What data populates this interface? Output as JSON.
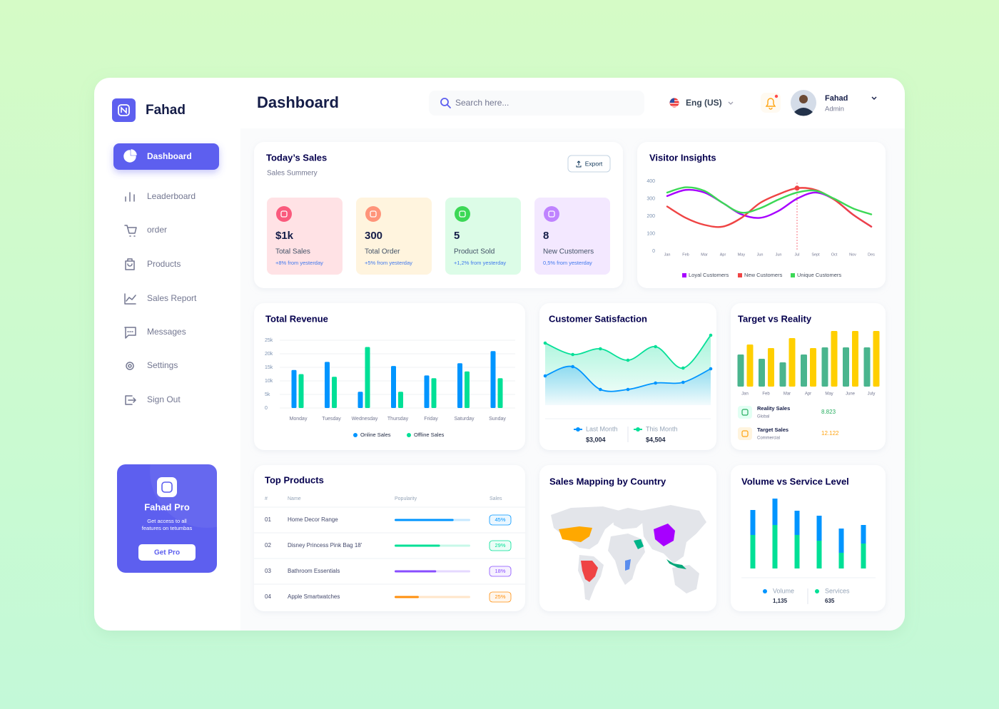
{
  "sidebar": {
    "brand": "Fahad",
    "menu": [
      "Dashboard",
      "Leaderboard",
      "order",
      "Products",
      "Sales Report",
      "Messages",
      "Settings",
      "Sign Out"
    ],
    "promo": {
      "title": "Fahad Pro",
      "text": [
        "Get access to all",
        "features on tetumbas"
      ],
      "button": "Get Pro"
    }
  },
  "header": {
    "title": "Dashboard",
    "search": "Search here...",
    "language": "Eng (US)",
    "user": {
      "name": "Fahad",
      "role": "Admin"
    }
  },
  "todays_sales": {
    "title": "Today’s Sales",
    "subtitle": "Sales Summery",
    "export": "Export",
    "cards": [
      {
        "value": "$1k",
        "label": "Total Sales",
        "change": "+8% from yesterday",
        "color": "#ffe2e5",
        "icon_color": "#fa5a7d"
      },
      {
        "value": "300",
        "label": "Total Order",
        "change": "+5% from yesterday",
        "color": "#fff4de",
        "icon_color": "#ff947a"
      },
      {
        "value": "5",
        "label": "Product Sold",
        "change": "+1,2% from yesterday",
        "color": "#dcfce7",
        "icon_color": "#3cd856"
      },
      {
        "value": "8",
        "label": "New Customers",
        "change": "0,5% from yesterday",
        "color": "#f3e8ff",
        "icon_color": "#bf83ff"
      }
    ]
  },
  "top_products": {
    "title": "Top Products",
    "columns": [
      "#",
      "Name",
      "Popularity",
      "Sales"
    ],
    "rows": [
      {
        "id": "01",
        "name": "Home Decor Range",
        "popularity": 78,
        "sales": "45%",
        "color": "#0095ff"
      },
      {
        "id": "02",
        "name": "Disney Princess Pink Bag 18'",
        "popularity": 60,
        "sales": "29%",
        "color": "#00e096"
      },
      {
        "id": "03",
        "name": "Bathroom Essentials",
        "popularity": 55,
        "sales": "18%",
        "color": "#884dff"
      },
      {
        "id": "04",
        "name": "Apple Smartwatches",
        "popularity": 32,
        "sales": "25%",
        "color": "#ff8f0d"
      }
    ]
  },
  "sales_map": {
    "title": "Sales Mapping by Country"
  },
  "chart_data": [
    {
      "type": "line",
      "title": "Visitor Insights",
      "categories": [
        "Jan",
        "Feb",
        "Mar",
        "Apr",
        "May",
        "Jun",
        "Jun",
        "Jul",
        "Sept",
        "Oct",
        "Nov",
        "Des"
      ],
      "ylim": [
        0,
        400
      ],
      "yticks": [
        0,
        100,
        200,
        300,
        400
      ],
      "series": [
        {
          "name": "Loyal Customers",
          "color": "#a700ff",
          "values": [
            315,
            350,
            335,
            275,
            210,
            190,
            230,
            300,
            335,
            295,
            210,
            140
          ]
        },
        {
          "name": "New Customers",
          "color": "#ef4444",
          "values": [
            255,
            190,
            150,
            140,
            190,
            275,
            325,
            360,
            350,
            295,
            210,
            140
          ]
        },
        {
          "name": "Unique Customers",
          "color": "#3cd856",
          "values": [
            335,
            365,
            345,
            275,
            220,
            245,
            295,
            335,
            345,
            300,
            245,
            210
          ]
        }
      ]
    },
    {
      "type": "bar",
      "title": "Total Revenue",
      "categories": [
        "Monday",
        "Tuesday",
        "Wednesday",
        "Thursday",
        "Friday",
        "Saturday",
        "Sunday"
      ],
      "ylim": [
        0,
        25000
      ],
      "yticks": [
        0,
        {
          "value": 5000,
          "label": "5k"
        },
        {
          "value": 10000,
          "label": "10k"
        },
        {
          "value": 15000,
          "label": "15k"
        },
        {
          "value": 20000,
          "label": "20k"
        },
        {
          "value": 25000,
          "label": "25k"
        }
      ],
      "grid": true,
      "series": [
        {
          "name": "Online Sales",
          "color": "#0095ff",
          "values": [
            14000,
            17000,
            6000,
            15500,
            12000,
            16500,
            21000
          ]
        },
        {
          "name": "Offline Sales",
          "color": "#00e096",
          "values": [
            12500,
            11500,
            22500,
            6000,
            11000,
            13500,
            11000
          ]
        }
      ]
    },
    {
      "type": "area",
      "title": "Customer Satisfaction",
      "series": [
        {
          "name": "Last Month",
          "color": "#0095ff",
          "total": "$3,004",
          "values": [
            33,
            46,
            14,
            14,
            23,
            24,
            43
          ]
        },
        {
          "name": "This Month",
          "color": "#07e098",
          "total": "$4,504",
          "values": [
            79,
            63,
            71,
            55,
            74,
            44,
            90
          ]
        }
      ]
    },
    {
      "type": "bar",
      "title": "Target vs Reality",
      "categories": [
        "Jan",
        "Feb",
        "Mar",
        "Apr",
        "May",
        "June",
        "July"
      ],
      "series": [
        {
          "name": "Reality Sales",
          "subtitle": "Global",
          "total": "8.823",
          "color": "#4ab58e",
          "values": [
            45,
            39,
            34,
            45,
            55,
            55,
            55
          ]
        },
        {
          "name": "Target Sales",
          "subtitle": "Commercial",
          "total": "12.122",
          "color": "#ffcf00",
          "values": [
            59,
            54,
            68,
            54,
            78,
            78,
            78
          ]
        }
      ]
    },
    {
      "type": "stacked_bar",
      "title": "Volume vs Service Level",
      "series": [
        {
          "name": "Volume",
          "color": "#0095ff",
          "total": "1,135",
          "values": [
            35,
            37,
            34,
            35,
            34,
            26
          ]
        },
        {
          "name": "Services",
          "color": "#00e096",
          "total": "635",
          "values": [
            47,
            61,
            47,
            39,
            22,
            35
          ]
        }
      ]
    }
  ]
}
